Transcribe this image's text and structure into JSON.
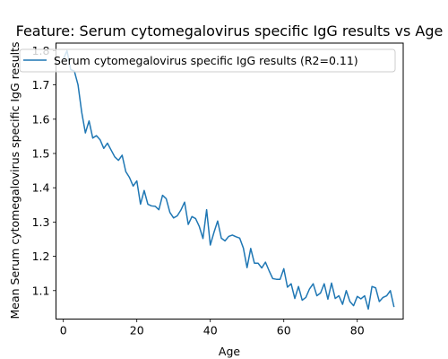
{
  "chart_data": {
    "type": "line",
    "title": "Feature: Serum cytomegalovirus specific IgG results vs Age",
    "xlabel": "Age",
    "ylabel": "Mean Serum cytomegalovirus specific IgG results",
    "xlim": [
      -2,
      92.5
    ],
    "ylim": [
      1.017,
      1.822
    ],
    "xticks": [
      0,
      20,
      40,
      60,
      80
    ],
    "yticks": [
      1.1,
      1.2,
      1.3,
      1.4,
      1.5,
      1.6,
      1.7,
      1.8
    ],
    "xtick_labels": [
      "0",
      "20",
      "40",
      "60",
      "80"
    ],
    "ytick_labels": [
      "1.1",
      "1.2",
      "1.3",
      "1.4",
      "1.5",
      "1.6",
      "1.7",
      "1.8"
    ],
    "grid": false,
    "legend_position": "upper left",
    "series": [
      {
        "name": "Serum cytomegalovirus specific IgG results (R2=0.11)",
        "color": "#1f77b4",
        "x": [
          0,
          1,
          2,
          3,
          4,
          5,
          6,
          7,
          8,
          9,
          10,
          11,
          12,
          13,
          14,
          15,
          16,
          17,
          18,
          19,
          20,
          21,
          22,
          23,
          24,
          25,
          26,
          27,
          28,
          29,
          30,
          31,
          32,
          33,
          34,
          35,
          36,
          37,
          38,
          39,
          40,
          41,
          42,
          43,
          44,
          45,
          46,
          47,
          48,
          49,
          50,
          51,
          52,
          53,
          54,
          55,
          56,
          57,
          58,
          59,
          60,
          61,
          62,
          63,
          64,
          65,
          66,
          67,
          68,
          69,
          70,
          71,
          72,
          73,
          74,
          75,
          76,
          77,
          78,
          79,
          80,
          81,
          82,
          83,
          84,
          85,
          86,
          87,
          88,
          89,
          90
        ],
        "y": [
          1.775,
          1.8,
          1.745,
          1.74,
          1.7,
          1.62,
          1.56,
          1.595,
          1.545,
          1.552,
          1.54,
          1.515,
          1.53,
          1.51,
          1.49,
          1.48,
          1.495,
          1.447,
          1.43,
          1.405,
          1.42,
          1.352,
          1.392,
          1.352,
          1.347,
          1.346,
          1.336,
          1.378,
          1.368,
          1.328,
          1.312,
          1.318,
          1.335,
          1.358,
          1.293,
          1.316,
          1.31,
          1.287,
          1.252,
          1.336,
          1.233,
          1.27,
          1.303,
          1.253,
          1.245,
          1.258,
          1.262,
          1.257,
          1.253,
          1.224,
          1.167,
          1.223,
          1.18,
          1.18,
          1.166,
          1.183,
          1.158,
          1.135,
          1.133,
          1.133,
          1.164,
          1.11,
          1.12,
          1.077,
          1.112,
          1.072,
          1.08,
          1.105,
          1.12,
          1.085,
          1.093,
          1.12,
          1.075,
          1.122,
          1.077,
          1.085,
          1.06,
          1.1,
          1.068,
          1.056,
          1.083,
          1.076,
          1.085,
          1.046,
          1.112,
          1.108,
          1.068,
          1.08,
          1.085,
          1.1,
          1.052
        ]
      }
    ]
  }
}
